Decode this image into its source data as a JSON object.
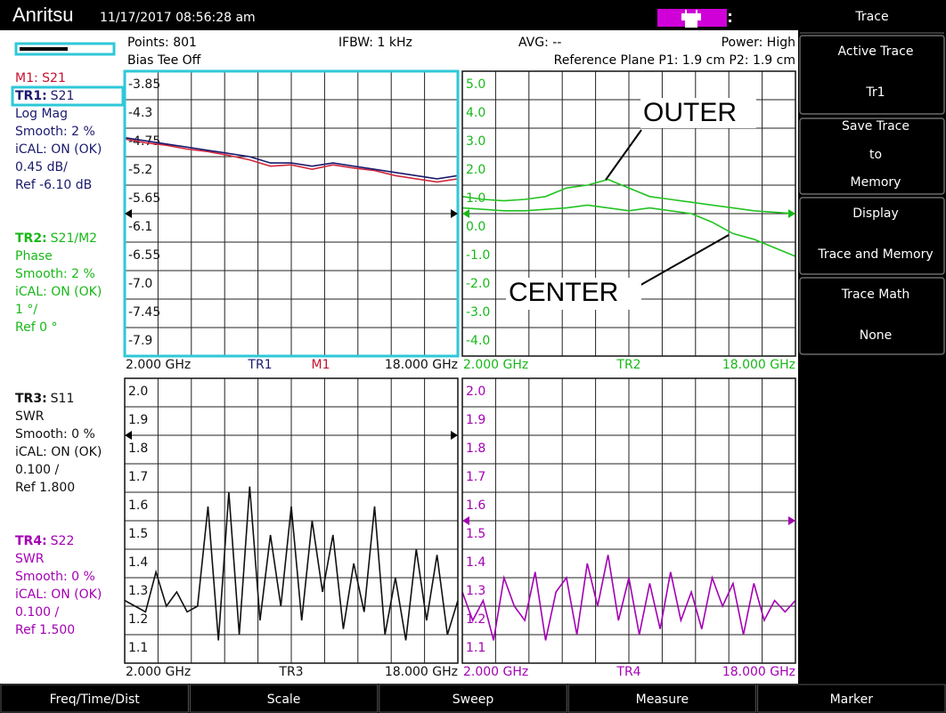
{
  "header": {
    "logo": "Anritsu",
    "timestamp": "11/17/2017 08:56:28 am"
  },
  "info": {
    "points": "Points: 801",
    "ifbw": "IFBW: 1 kHz",
    "avg": "AVG: --",
    "power": "Power: High",
    "bias": "Bias Tee Off",
    "ref_plane": "Reference Plane P1: 1.9 cm P2: 1.9 cm"
  },
  "marker_line": {
    "text": "M1: S21",
    "color": "#c8102e"
  },
  "trace_blocks": [
    {
      "label": "TR1:",
      "param": "S21",
      "color": "#1a1a6e",
      "lines": [
        "Log Mag",
        "Smooth: 2 %",
        "iCAL: ON (OK)",
        "0.45 dB/",
        "Ref -6.10 dB"
      ]
    },
    {
      "label": "TR2:",
      "param": "S21/M2",
      "color": "#18b818",
      "lines": [
        "Phase",
        "Smooth: 2 %",
        "iCAL: ON (OK)",
        "1 °/",
        "Ref 0 °"
      ]
    },
    {
      "label": "TR3:",
      "param": "S11",
      "color": "#111111",
      "lines": [
        "SWR",
        "Smooth: 0 %",
        "iCAL: ON (OK)",
        "0.100 /",
        "Ref 1.800"
      ]
    },
    {
      "label": "TR4:",
      "param": "S22",
      "color": "#a400b4",
      "lines": [
        "SWR",
        "Smooth: 0 %",
        "iCAL: ON (OK)",
        "0.100 /",
        "Ref 1.500"
      ]
    }
  ],
  "panels": [
    {
      "xlim": [
        2,
        18
      ],
      "ylim": [
        -8.35,
        -3.85
      ],
      "tick_color": "#111111",
      "border": "#2ec8d8",
      "yticks": [
        -3.85,
        -4.3,
        -4.75,
        -5.2,
        -5.65,
        -6.1,
        -6.55,
        {
          "value": -7,
          "label": "-7.0"
        },
        -7.45,
        -7.9
      ],
      "footer": [
        "2.000 GHz",
        "TR1",
        "M1",
        "18.000 GHz"
      ],
      "footer_colors": [
        "#111111",
        "#1a1a6e",
        "#c8102e",
        "#111111"
      ],
      "x": [
        2,
        3,
        4,
        5,
        6,
        7,
        8,
        9,
        10,
        11,
        12,
        13,
        14,
        15,
        16,
        17,
        18
      ],
      "traces": [
        {
          "color": "#d0283c",
          "values": [
            -4.92,
            -4.98,
            -5.02,
            -5.08,
            -5.12,
            -5.18,
            -5.25,
            -5.35,
            -5.33,
            -5.4,
            -5.33,
            -5.38,
            -5.42,
            -5.5,
            -5.55,
            -5.6,
            -5.55
          ]
        },
        {
          "color": "#1a1a6e",
          "values": [
            -4.9,
            -4.95,
            -5.0,
            -5.05,
            -5.1,
            -5.15,
            -5.2,
            -5.3,
            -5.3,
            -5.35,
            -5.3,
            -5.35,
            -5.4,
            -5.45,
            -5.5,
            -5.55,
            -5.5
          ]
        }
      ]
    },
    {
      "xlim": [
        2,
        18
      ],
      "ylim": [
        -5,
        5
      ],
      "tick_color": "#18b818",
      "border": "#111111",
      "yticks": [
        {
          "value": 5,
          "label": "5.0"
        },
        {
          "value": 4,
          "label": "4.0"
        },
        {
          "value": 3,
          "label": "3.0"
        },
        {
          "value": 2,
          "label": "2.0"
        },
        {
          "value": 1,
          "label": "1.0"
        },
        {
          "value": 0,
          "label": "0.0"
        },
        {
          "value": -1,
          "label": "-1.0"
        },
        {
          "value": -2,
          "label": "-2.0"
        },
        {
          "value": -3,
          "label": "-3.0"
        },
        {
          "value": -4,
          "label": "-4.0"
        }
      ],
      "footer": [
        "2.000 GHz",
        "TR2",
        "18.000 GHz"
      ],
      "footer_colors": [
        "#18b818",
        "#18b818",
        "#18b818"
      ],
      "x": [
        2,
        3,
        4,
        5,
        6,
        7,
        8,
        9,
        10,
        11,
        12,
        13,
        14,
        15,
        16,
        17,
        18
      ],
      "traces": [
        {
          "color": "#22c322",
          "values": [
            0.6,
            0.5,
            0.45,
            0.5,
            0.6,
            0.9,
            1.0,
            1.2,
            0.9,
            0.6,
            0.5,
            0.4,
            0.3,
            0.2,
            0.1,
            0.05,
            0.0
          ]
        },
        {
          "color": "#22c322",
          "values": [
            0.2,
            0.15,
            0.1,
            0.1,
            0.15,
            0.2,
            0.3,
            0.2,
            0.1,
            0.2,
            0.1,
            0.0,
            -0.3,
            -0.7,
            -0.9,
            -1.2,
            -1.5
          ]
        }
      ]
    },
    {
      "xlim": [
        2,
        18
      ],
      "ylim": [
        1,
        2
      ],
      "tick_color": "#111111",
      "border": "#111111",
      "yticks": [
        {
          "value": 2,
          "label": "2.0"
        },
        1.9,
        1.8,
        1.7,
        1.6,
        1.5,
        1.4,
        1.3,
        1.2,
        1.1
      ],
      "footer": [
        "2.000 GHz",
        "TR3",
        "18.000 GHz"
      ],
      "footer_colors": [
        "#111111",
        "#111111",
        "#111111"
      ],
      "x": [
        2,
        2.5,
        3,
        3.5,
        4,
        4.5,
        5,
        5.5,
        6,
        6.5,
        7,
        7.5,
        8,
        8.5,
        9,
        9.5,
        10,
        10.5,
        11,
        11.5,
        12,
        12.5,
        13,
        13.5,
        14,
        14.5,
        15,
        15.5,
        16,
        16.5,
        17,
        17.5,
        18
      ],
      "traces": [
        {
          "color": "#111111",
          "values": [
            1.22,
            1.2,
            1.18,
            1.32,
            1.2,
            1.25,
            1.18,
            1.2,
            1.55,
            1.08,
            1.6,
            1.1,
            1.62,
            1.15,
            1.45,
            1.2,
            1.55,
            1.15,
            1.5,
            1.25,
            1.45,
            1.12,
            1.35,
            1.18,
            1.55,
            1.1,
            1.3,
            1.08,
            1.4,
            1.15,
            1.38,
            1.1,
            1.22
          ]
        }
      ]
    },
    {
      "xlim": [
        2,
        18
      ],
      "ylim": [
        1,
        2
      ],
      "tick_color": "#a400b4",
      "border": "#111111",
      "yticks": [
        {
          "value": 2,
          "label": "2.0"
        },
        1.9,
        1.8,
        1.7,
        1.6,
        1.5,
        1.4,
        1.3,
        1.2,
        1.1
      ],
      "footer": [
        "2.000 GHz",
        "TR4",
        "18.000 GHz"
      ],
      "footer_colors": [
        "#a400b4",
        "#a400b4",
        "#a400b4"
      ],
      "x": [
        2,
        2.5,
        3,
        3.5,
        4,
        4.5,
        5,
        5.5,
        6,
        6.5,
        7,
        7.5,
        8,
        8.5,
        9,
        9.5,
        10,
        10.5,
        11,
        11.5,
        12,
        12.5,
        13,
        13.5,
        14,
        14.5,
        15,
        15.5,
        16,
        16.5,
        17,
        17.5,
        18
      ],
      "traces": [
        {
          "color": "#a400b4",
          "values": [
            1.25,
            1.15,
            1.22,
            1.08,
            1.3,
            1.2,
            1.15,
            1.32,
            1.08,
            1.25,
            1.3,
            1.1,
            1.35,
            1.2,
            1.38,
            1.15,
            1.3,
            1.1,
            1.28,
            1.12,
            1.32,
            1.15,
            1.25,
            1.12,
            1.3,
            1.2,
            1.28,
            1.1,
            1.28,
            1.15,
            1.22,
            1.18,
            1.22
          ]
        }
      ]
    }
  ],
  "annotations": [
    "OUTER",
    "CENTER"
  ],
  "softkeys": {
    "title": "Trace",
    "keys": [
      [
        "Active Trace",
        "Tr1"
      ],
      [
        "Save Trace",
        "to",
        "Memory"
      ],
      [
        "Display",
        "Trace and Memory"
      ],
      [
        "Trace Math",
        "None"
      ]
    ]
  },
  "menu": [
    "Freq/Time/Dist",
    "Scale",
    "Sweep",
    "Measure",
    "Marker"
  ]
}
